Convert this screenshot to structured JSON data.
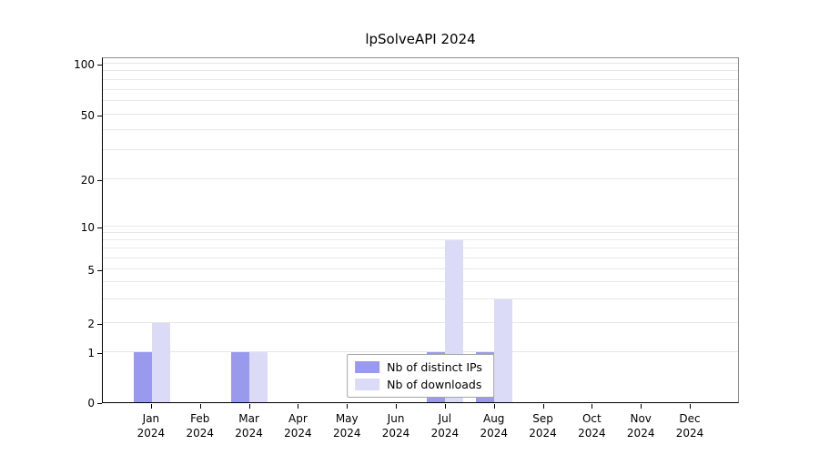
{
  "chart_data": {
    "type": "bar",
    "title": "lpSolveAPI 2024",
    "categories": [
      "Jan",
      "Feb",
      "Mar",
      "Apr",
      "May",
      "Jun",
      "Jul",
      "Aug",
      "Sep",
      "Oct",
      "Nov",
      "Dec"
    ],
    "year_label": "2024",
    "series": [
      {
        "name": "Nb of distinct IPs",
        "color": "#9999ee",
        "values": [
          1,
          0,
          1,
          0,
          0,
          0,
          1,
          1,
          0,
          0,
          0,
          0
        ]
      },
      {
        "name": "Nb of downloads",
        "color": "#dbdbf8",
        "values": [
          2,
          0,
          1,
          0,
          0,
          0,
          8,
          3,
          0,
          0,
          0,
          0
        ]
      }
    ],
    "y_ticks": [
      0,
      1,
      2,
      5,
      10,
      20,
      50,
      100
    ],
    "ylim": [
      0,
      100
    ],
    "yscale": "log",
    "grid": true,
    "legend_position": "inside-bottom-center"
  }
}
